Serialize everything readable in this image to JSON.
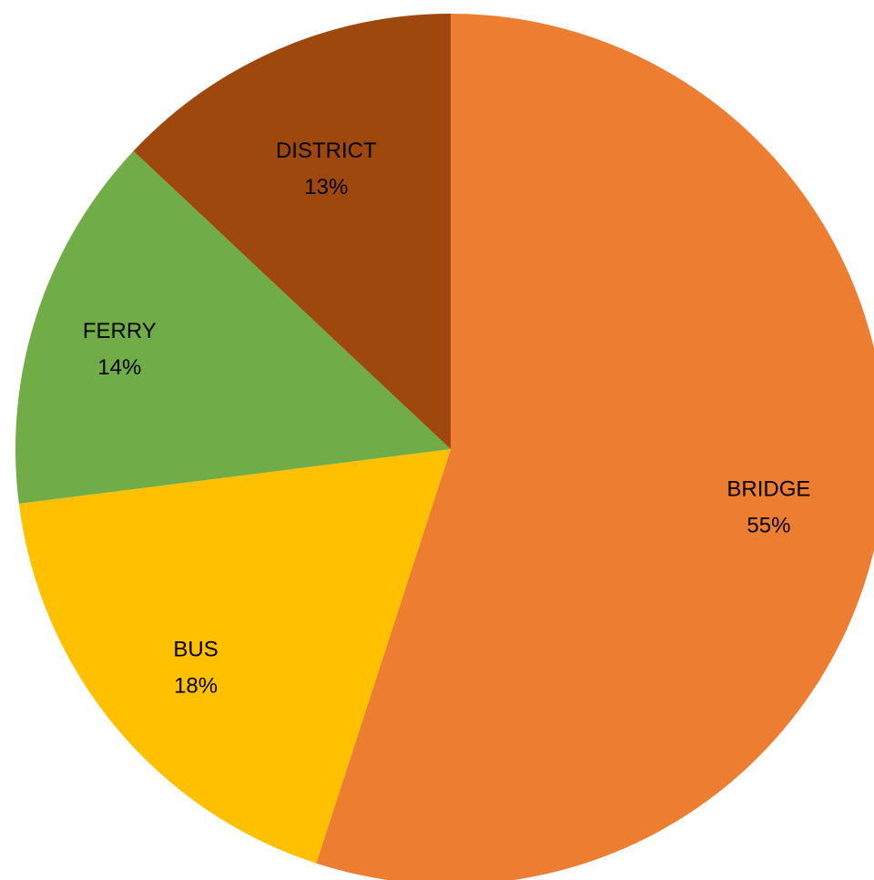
{
  "chart_data": {
    "type": "pie",
    "title": "",
    "slices": [
      {
        "label": "BRIDGE",
        "value": 55,
        "value_label": "55%",
        "color": "#ED7D31"
      },
      {
        "label": "BUS",
        "value": 18,
        "value_label": "18%",
        "color": "#FFC000"
      },
      {
        "label": "FERRY",
        "value": 14,
        "value_label": "14%",
        "color": "#70AD47"
      },
      {
        "label": "DISTRICT",
        "value": 13,
        "value_label": "13%",
        "color": "#9E480E"
      }
    ],
    "start_angle": "12 o'clock",
    "direction": "clockwise",
    "legend": "none",
    "labels_inside": true
  }
}
